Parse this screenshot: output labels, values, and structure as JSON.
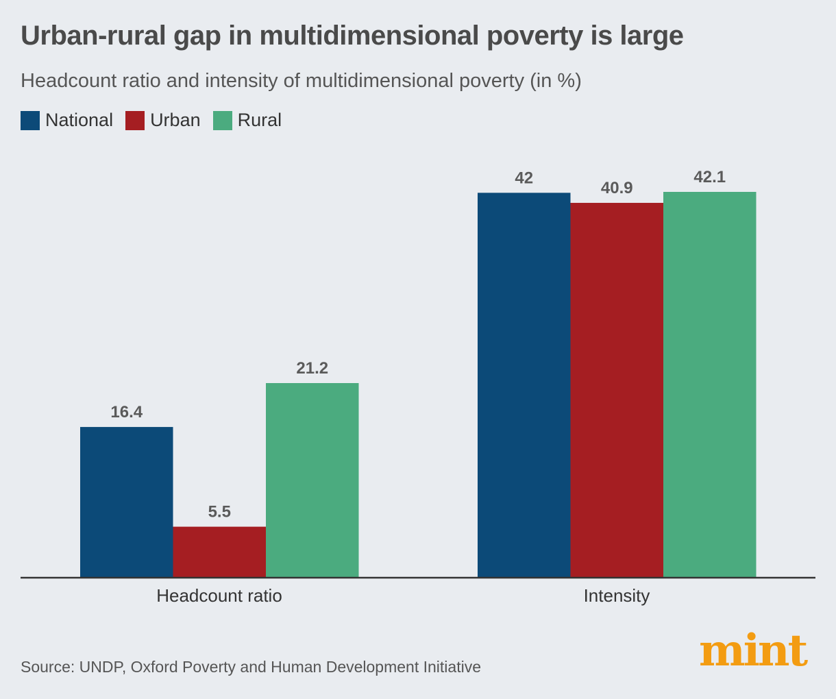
{
  "chart_data": {
    "type": "bar",
    "title": "Urban-rural gap in multidimensional poverty is large",
    "subtitle": "Headcount ratio and intensity of multidimensional poverty (in %)",
    "categories": [
      "Headcount ratio",
      "Intensity"
    ],
    "series": [
      {
        "name": "National",
        "color": "#0c4a78",
        "values": [
          16.4,
          42
        ],
        "labels": [
          "16.4",
          "42"
        ]
      },
      {
        "name": "Urban",
        "color": "#a51e22",
        "values": [
          5.5,
          40.9
        ],
        "labels": [
          "5.5",
          "40.9"
        ]
      },
      {
        "name": "Rural",
        "color": "#4bab7f",
        "values": [
          21.2,
          42.1
        ],
        "labels": [
          "21.2",
          "42.1"
        ]
      }
    ],
    "ylim": [
      0,
      42.1
    ],
    "xlabel": "",
    "ylabel": "",
    "legend": "top-left",
    "grid": false
  },
  "footer": {
    "source": "Source: UNDP, Oxford Poverty and Human Development Initiative",
    "brand": "mint"
  }
}
